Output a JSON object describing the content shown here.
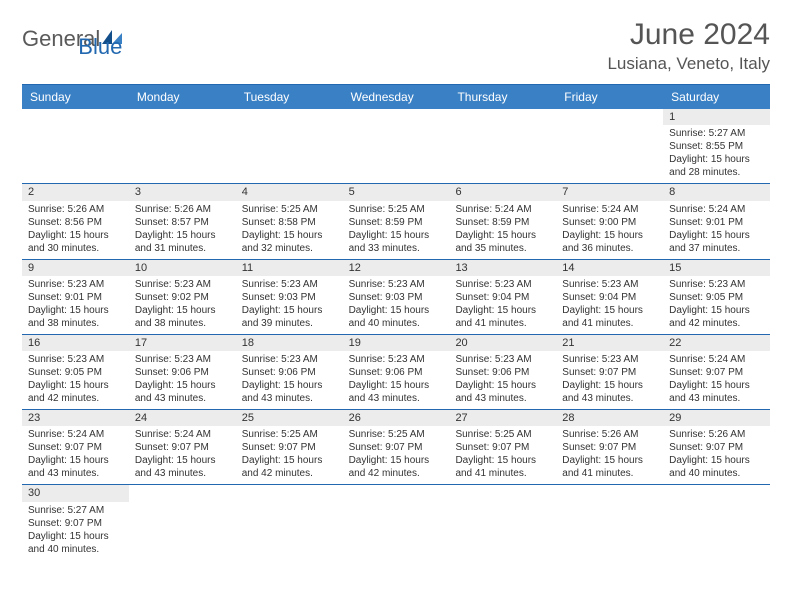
{
  "logo": {
    "general": "General",
    "blue": "Blue"
  },
  "header": {
    "month_title": "June 2024",
    "location": "Lusiana, Veneto, Italy"
  },
  "colors": {
    "header_bar": "#3a80c5",
    "accent_line": "#2268b0",
    "num_bg": "#ececec",
    "text": "#333333",
    "title_text": "#555555"
  },
  "day_headers": [
    "Sunday",
    "Monday",
    "Tuesday",
    "Wednesday",
    "Thursday",
    "Friday",
    "Saturday"
  ],
  "weeks": [
    [
      null,
      null,
      null,
      null,
      null,
      null,
      {
        "d": "1",
        "sr": "Sunrise: 5:27 AM",
        "ss": "Sunset: 8:55 PM",
        "dl1": "Daylight: 15 hours",
        "dl2": "and 28 minutes."
      }
    ],
    [
      {
        "d": "2",
        "sr": "Sunrise: 5:26 AM",
        "ss": "Sunset: 8:56 PM",
        "dl1": "Daylight: 15 hours",
        "dl2": "and 30 minutes."
      },
      {
        "d": "3",
        "sr": "Sunrise: 5:26 AM",
        "ss": "Sunset: 8:57 PM",
        "dl1": "Daylight: 15 hours",
        "dl2": "and 31 minutes."
      },
      {
        "d": "4",
        "sr": "Sunrise: 5:25 AM",
        "ss": "Sunset: 8:58 PM",
        "dl1": "Daylight: 15 hours",
        "dl2": "and 32 minutes."
      },
      {
        "d": "5",
        "sr": "Sunrise: 5:25 AM",
        "ss": "Sunset: 8:59 PM",
        "dl1": "Daylight: 15 hours",
        "dl2": "and 33 minutes."
      },
      {
        "d": "6",
        "sr": "Sunrise: 5:24 AM",
        "ss": "Sunset: 8:59 PM",
        "dl1": "Daylight: 15 hours",
        "dl2": "and 35 minutes."
      },
      {
        "d": "7",
        "sr": "Sunrise: 5:24 AM",
        "ss": "Sunset: 9:00 PM",
        "dl1": "Daylight: 15 hours",
        "dl2": "and 36 minutes."
      },
      {
        "d": "8",
        "sr": "Sunrise: 5:24 AM",
        "ss": "Sunset: 9:01 PM",
        "dl1": "Daylight: 15 hours",
        "dl2": "and 37 minutes."
      }
    ],
    [
      {
        "d": "9",
        "sr": "Sunrise: 5:23 AM",
        "ss": "Sunset: 9:01 PM",
        "dl1": "Daylight: 15 hours",
        "dl2": "and 38 minutes."
      },
      {
        "d": "10",
        "sr": "Sunrise: 5:23 AM",
        "ss": "Sunset: 9:02 PM",
        "dl1": "Daylight: 15 hours",
        "dl2": "and 38 minutes."
      },
      {
        "d": "11",
        "sr": "Sunrise: 5:23 AM",
        "ss": "Sunset: 9:03 PM",
        "dl1": "Daylight: 15 hours",
        "dl2": "and 39 minutes."
      },
      {
        "d": "12",
        "sr": "Sunrise: 5:23 AM",
        "ss": "Sunset: 9:03 PM",
        "dl1": "Daylight: 15 hours",
        "dl2": "and 40 minutes."
      },
      {
        "d": "13",
        "sr": "Sunrise: 5:23 AM",
        "ss": "Sunset: 9:04 PM",
        "dl1": "Daylight: 15 hours",
        "dl2": "and 41 minutes."
      },
      {
        "d": "14",
        "sr": "Sunrise: 5:23 AM",
        "ss": "Sunset: 9:04 PM",
        "dl1": "Daylight: 15 hours",
        "dl2": "and 41 minutes."
      },
      {
        "d": "15",
        "sr": "Sunrise: 5:23 AM",
        "ss": "Sunset: 9:05 PM",
        "dl1": "Daylight: 15 hours",
        "dl2": "and 42 minutes."
      }
    ],
    [
      {
        "d": "16",
        "sr": "Sunrise: 5:23 AM",
        "ss": "Sunset: 9:05 PM",
        "dl1": "Daylight: 15 hours",
        "dl2": "and 42 minutes."
      },
      {
        "d": "17",
        "sr": "Sunrise: 5:23 AM",
        "ss": "Sunset: 9:06 PM",
        "dl1": "Daylight: 15 hours",
        "dl2": "and 43 minutes."
      },
      {
        "d": "18",
        "sr": "Sunrise: 5:23 AM",
        "ss": "Sunset: 9:06 PM",
        "dl1": "Daylight: 15 hours",
        "dl2": "and 43 minutes."
      },
      {
        "d": "19",
        "sr": "Sunrise: 5:23 AM",
        "ss": "Sunset: 9:06 PM",
        "dl1": "Daylight: 15 hours",
        "dl2": "and 43 minutes."
      },
      {
        "d": "20",
        "sr": "Sunrise: 5:23 AM",
        "ss": "Sunset: 9:06 PM",
        "dl1": "Daylight: 15 hours",
        "dl2": "and 43 minutes."
      },
      {
        "d": "21",
        "sr": "Sunrise: 5:23 AM",
        "ss": "Sunset: 9:07 PM",
        "dl1": "Daylight: 15 hours",
        "dl2": "and 43 minutes."
      },
      {
        "d": "22",
        "sr": "Sunrise: 5:24 AM",
        "ss": "Sunset: 9:07 PM",
        "dl1": "Daylight: 15 hours",
        "dl2": "and 43 minutes."
      }
    ],
    [
      {
        "d": "23",
        "sr": "Sunrise: 5:24 AM",
        "ss": "Sunset: 9:07 PM",
        "dl1": "Daylight: 15 hours",
        "dl2": "and 43 minutes."
      },
      {
        "d": "24",
        "sr": "Sunrise: 5:24 AM",
        "ss": "Sunset: 9:07 PM",
        "dl1": "Daylight: 15 hours",
        "dl2": "and 43 minutes."
      },
      {
        "d": "25",
        "sr": "Sunrise: 5:25 AM",
        "ss": "Sunset: 9:07 PM",
        "dl1": "Daylight: 15 hours",
        "dl2": "and 42 minutes."
      },
      {
        "d": "26",
        "sr": "Sunrise: 5:25 AM",
        "ss": "Sunset: 9:07 PM",
        "dl1": "Daylight: 15 hours",
        "dl2": "and 42 minutes."
      },
      {
        "d": "27",
        "sr": "Sunrise: 5:25 AM",
        "ss": "Sunset: 9:07 PM",
        "dl1": "Daylight: 15 hours",
        "dl2": "and 41 minutes."
      },
      {
        "d": "28",
        "sr": "Sunrise: 5:26 AM",
        "ss": "Sunset: 9:07 PM",
        "dl1": "Daylight: 15 hours",
        "dl2": "and 41 minutes."
      },
      {
        "d": "29",
        "sr": "Sunrise: 5:26 AM",
        "ss": "Sunset: 9:07 PM",
        "dl1": "Daylight: 15 hours",
        "dl2": "and 40 minutes."
      }
    ],
    [
      {
        "d": "30",
        "sr": "Sunrise: 5:27 AM",
        "ss": "Sunset: 9:07 PM",
        "dl1": "Daylight: 15 hours",
        "dl2": "and 40 minutes."
      },
      null,
      null,
      null,
      null,
      null,
      null
    ]
  ]
}
